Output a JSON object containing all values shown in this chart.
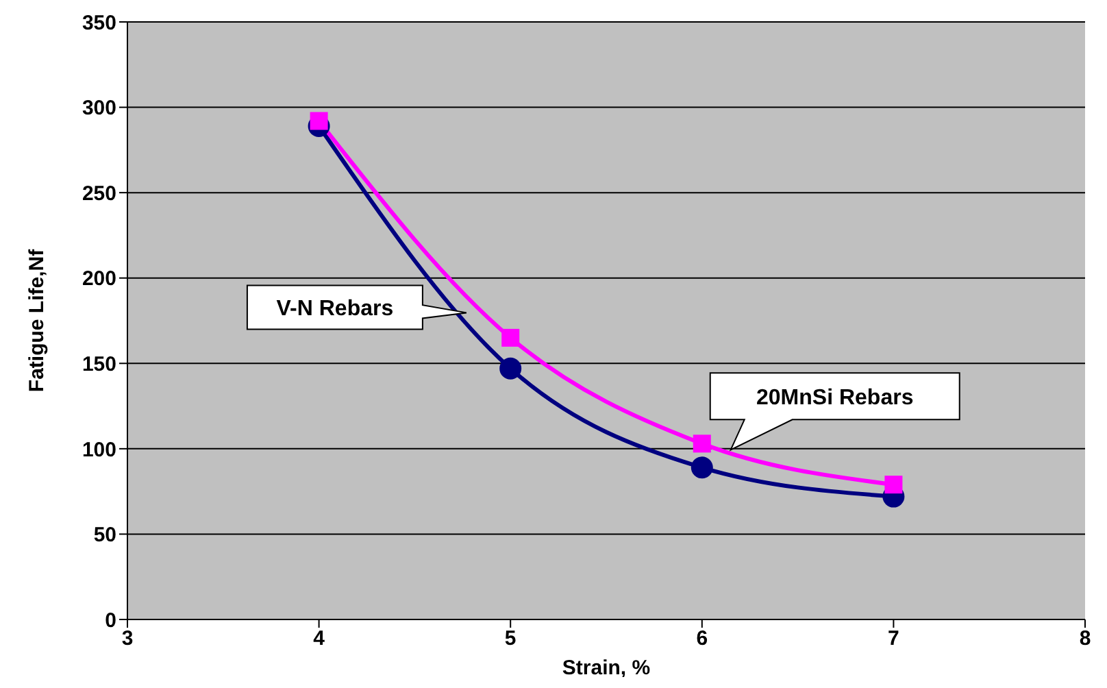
{
  "chart_data": {
    "type": "line",
    "xlabel": "Strain, %",
    "ylabel": "Fatigue Life,Nf",
    "x": [
      4,
      5,
      6,
      7
    ],
    "series": [
      {
        "name": "V-N Rebars",
        "color": "#000080",
        "values": [
          289,
          147,
          89,
          72
        ],
        "marker": "circle"
      },
      {
        "name": "20MnSi Rebars",
        "color": "#ff00ff",
        "values": [
          292,
          165,
          103,
          79
        ],
        "marker": "square"
      }
    ],
    "xlim": [
      3,
      8
    ],
    "xticks": [
      3,
      4,
      5,
      6,
      7,
      8
    ],
    "ylim": [
      0,
      350
    ],
    "yticks": [
      0,
      50,
      100,
      150,
      200,
      250,
      300,
      350
    ],
    "grid": "y",
    "legend": false,
    "line_style": "solid"
  }
}
